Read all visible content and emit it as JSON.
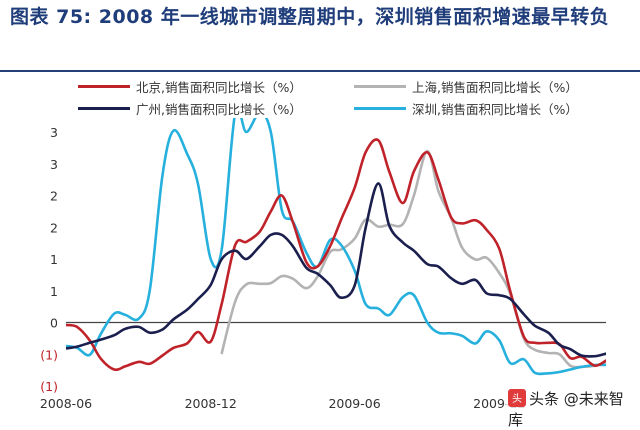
{
  "figure": {
    "title": "图表 75: 2008 年一线城市调整周期中，深圳销售面积增速最早转负",
    "watermark": "头条 @未来智库"
  },
  "colors": {
    "beijing": "#c0222a",
    "shanghai": "#b3b3b3",
    "guangzhou": "#1b1f4e",
    "shenzhen": "#26b0dd"
  },
  "chart_data": {
    "type": "line",
    "title": "",
    "xlabel": "",
    "ylabel": "",
    "x_ticks": [
      "2008-06",
      "2008-12",
      "2009-06",
      "2009-12"
    ],
    "y_ticks": [
      "3",
      "3",
      "2",
      "2",
      "1",
      "1",
      "0",
      "(1)",
      "(1)"
    ],
    "y_tick_values": [
      3.0,
      2.5,
      2.0,
      1.5,
      1.0,
      0.5,
      0.0,
      -0.5,
      -1.0
    ],
    "ylim": [
      -1.0,
      3.0
    ],
    "legend_position": "top",
    "series": [
      {
        "name": "北京,销售面积同比增长（%）",
        "color_key": "beijing",
        "points": [
          [
            "2008-06-01",
            -0.04
          ],
          [
            "2008-06-15",
            -0.07
          ],
          [
            "2008-07-01",
            -0.28
          ],
          [
            "2008-07-15",
            -0.57
          ],
          [
            "2008-08-01",
            -0.74
          ],
          [
            "2008-08-15",
            -0.69
          ],
          [
            "2008-09-01",
            -0.62
          ],
          [
            "2008-09-15",
            -0.65
          ],
          [
            "2008-10-01",
            -0.52
          ],
          [
            "2008-10-15",
            -0.4
          ],
          [
            "2008-11-01",
            -0.33
          ],
          [
            "2008-11-15",
            -0.15
          ],
          [
            "2008-12-01",
            -0.3
          ],
          [
            "2008-12-15",
            0.3
          ],
          [
            "2009-01-01",
            1.22
          ],
          [
            "2009-01-15",
            1.27
          ],
          [
            "2009-02-01",
            1.43
          ],
          [
            "2009-02-15",
            1.75
          ],
          [
            "2009-03-01",
            2.0
          ],
          [
            "2009-03-15",
            1.58
          ],
          [
            "2009-04-01",
            0.95
          ],
          [
            "2009-04-15",
            0.88
          ],
          [
            "2009-05-01",
            1.2
          ],
          [
            "2009-05-15",
            1.62
          ],
          [
            "2009-06-01",
            2.12
          ],
          [
            "2009-06-15",
            2.68
          ],
          [
            "2009-07-01",
            2.87
          ],
          [
            "2009-07-15",
            2.37
          ],
          [
            "2009-08-01",
            1.88
          ],
          [
            "2009-08-15",
            2.38
          ],
          [
            "2009-09-01",
            2.68
          ],
          [
            "2009-09-15",
            2.25
          ],
          [
            "2009-10-01",
            1.66
          ],
          [
            "2009-10-15",
            1.56
          ],
          [
            "2009-11-01",
            1.61
          ],
          [
            "2009-11-15",
            1.46
          ],
          [
            "2009-12-01",
            1.16
          ],
          [
            "2009-12-15",
            0.49
          ],
          [
            "2010-01-01",
            -0.22
          ],
          [
            "2010-01-15",
            -0.32
          ],
          [
            "2010-02-01",
            -0.32
          ],
          [
            "2010-02-15",
            -0.34
          ],
          [
            "2010-03-01",
            -0.56
          ],
          [
            "2010-03-15",
            -0.54
          ],
          [
            "2010-04-01",
            -0.68
          ],
          [
            "2010-04-15",
            -0.6
          ]
        ]
      },
      {
        "name": "上海,销售面积同比增长（%）",
        "color_key": "shanghai",
        "points": [
          [
            "2008-12-15",
            -0.48
          ],
          [
            "2009-01-01",
            0.33
          ],
          [
            "2009-01-15",
            0.6
          ],
          [
            "2009-02-01",
            0.61
          ],
          [
            "2009-02-15",
            0.62
          ],
          [
            "2009-03-01",
            0.73
          ],
          [
            "2009-03-15",
            0.69
          ],
          [
            "2009-04-01",
            0.54
          ],
          [
            "2009-04-15",
            0.72
          ],
          [
            "2009-05-01",
            1.11
          ],
          [
            "2009-05-15",
            1.15
          ],
          [
            "2009-06-01",
            1.32
          ],
          [
            "2009-06-15",
            1.62
          ],
          [
            "2009-07-01",
            1.51
          ],
          [
            "2009-07-15",
            1.54
          ],
          [
            "2009-08-01",
            1.55
          ],
          [
            "2009-08-15",
            2.0
          ],
          [
            "2009-09-01",
            2.7
          ],
          [
            "2009-09-15",
            2.07
          ],
          [
            "2009-10-01",
            1.65
          ],
          [
            "2009-10-15",
            1.18
          ],
          [
            "2009-11-01",
            0.99
          ],
          [
            "2009-11-15",
            1.02
          ],
          [
            "2009-12-01",
            0.78
          ],
          [
            "2009-12-15",
            0.45
          ],
          [
            "2010-01-01",
            -0.25
          ],
          [
            "2010-01-15",
            -0.43
          ],
          [
            "2010-02-01",
            -0.48
          ],
          [
            "2010-02-15",
            -0.5
          ],
          [
            "2010-03-01",
            -0.68
          ],
          [
            "2010-03-15",
            -0.7
          ],
          [
            "2010-04-01",
            -0.68
          ],
          [
            "2010-04-15",
            -0.62
          ]
        ]
      },
      {
        "name": "广州,销售面积同比增长（%）",
        "color_key": "guangzhou",
        "points": [
          [
            "2008-06-01",
            -0.41
          ],
          [
            "2008-06-15",
            -0.38
          ],
          [
            "2008-07-01",
            -0.32
          ],
          [
            "2008-07-15",
            -0.27
          ],
          [
            "2008-08-01",
            -0.2
          ],
          [
            "2008-08-15",
            -0.1
          ],
          [
            "2008-09-01",
            -0.07
          ],
          [
            "2008-09-15",
            -0.16
          ],
          [
            "2008-10-01",
            -0.11
          ],
          [
            "2008-10-15",
            0.05
          ],
          [
            "2008-11-01",
            0.2
          ],
          [
            "2008-11-15",
            0.37
          ],
          [
            "2008-12-01",
            0.59
          ],
          [
            "2008-12-15",
            1.0
          ],
          [
            "2009-01-01",
            1.13
          ],
          [
            "2009-01-15",
            1.0
          ],
          [
            "2009-02-01",
            1.2
          ],
          [
            "2009-02-15",
            1.38
          ],
          [
            "2009-03-01",
            1.38
          ],
          [
            "2009-03-15",
            1.2
          ],
          [
            "2009-04-01",
            0.86
          ],
          [
            "2009-04-15",
            0.77
          ],
          [
            "2009-05-01",
            0.59
          ],
          [
            "2009-05-15",
            0.39
          ],
          [
            "2009-06-01",
            0.58
          ],
          [
            "2009-06-15",
            1.49
          ],
          [
            "2009-07-01",
            2.19
          ],
          [
            "2009-07-15",
            1.52
          ],
          [
            "2009-08-01",
            1.26
          ],
          [
            "2009-08-15",
            1.13
          ],
          [
            "2009-09-01",
            0.92
          ],
          [
            "2009-09-15",
            0.88
          ],
          [
            "2009-10-01",
            0.7
          ],
          [
            "2009-10-15",
            0.61
          ],
          [
            "2009-11-01",
            0.67
          ],
          [
            "2009-11-15",
            0.46
          ],
          [
            "2009-12-01",
            0.43
          ],
          [
            "2009-12-15",
            0.37
          ],
          [
            "2010-01-01",
            0.13
          ],
          [
            "2010-01-15",
            -0.05
          ],
          [
            "2010-02-01",
            -0.16
          ],
          [
            "2010-02-15",
            -0.35
          ],
          [
            "2010-03-01",
            -0.42
          ],
          [
            "2010-03-15",
            -0.52
          ],
          [
            "2010-04-01",
            -0.53
          ],
          [
            "2010-04-15",
            -0.49
          ]
        ]
      },
      {
        "name": "深圳,销售面积同比增长（%）",
        "color_key": "shenzhen",
        "points": [
          [
            "2008-06-01",
            -0.37
          ],
          [
            "2008-06-15",
            -0.4
          ],
          [
            "2008-07-01",
            -0.51
          ],
          [
            "2008-07-15",
            -0.18
          ],
          [
            "2008-08-01",
            0.14
          ],
          [
            "2008-08-15",
            0.12
          ],
          [
            "2008-09-01",
            0.06
          ],
          [
            "2008-09-15",
            0.51
          ],
          [
            "2008-10-01",
            2.32
          ],
          [
            "2008-10-15",
            3.02
          ],
          [
            "2008-11-01",
            2.66
          ],
          [
            "2008-11-15",
            2.18
          ],
          [
            "2008-12-01",
            1.0
          ],
          [
            "2008-12-15",
            1.16
          ],
          [
            "2009-01-01",
            3.3
          ],
          [
            "2009-01-15",
            3.0
          ],
          [
            "2009-02-01",
            3.3
          ],
          [
            "2009-02-15",
            3.0
          ],
          [
            "2009-03-01",
            1.77
          ],
          [
            "2009-03-15",
            1.59
          ],
          [
            "2009-04-01",
            1.1
          ],
          [
            "2009-04-15",
            0.88
          ],
          [
            "2009-05-01",
            1.3
          ],
          [
            "2009-05-15",
            1.22
          ],
          [
            "2009-06-01",
            0.82
          ],
          [
            "2009-06-15",
            0.29
          ],
          [
            "2009-07-01",
            0.22
          ],
          [
            "2009-07-15",
            0.12
          ],
          [
            "2009-08-01",
            0.4
          ],
          [
            "2009-08-15",
            0.43
          ],
          [
            "2009-09-01",
            0.0
          ],
          [
            "2009-09-15",
            -0.16
          ],
          [
            "2009-10-01",
            -0.17
          ],
          [
            "2009-10-15",
            -0.21
          ],
          [
            "2009-11-01",
            -0.33
          ],
          [
            "2009-11-15",
            -0.14
          ],
          [
            "2009-12-01",
            -0.28
          ],
          [
            "2009-12-15",
            -0.64
          ],
          [
            "2010-01-01",
            -0.58
          ],
          [
            "2010-01-15",
            -0.79
          ],
          [
            "2010-02-01",
            -0.8
          ],
          [
            "2010-02-15",
            -0.78
          ],
          [
            "2010-03-01",
            -0.74
          ],
          [
            "2010-03-15",
            -0.7
          ],
          [
            "2010-04-01",
            -0.67
          ],
          [
            "2010-04-15",
            -0.67
          ]
        ]
      }
    ]
  }
}
